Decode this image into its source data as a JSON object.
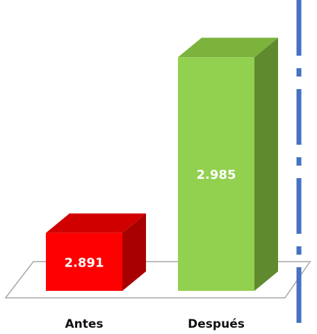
{
  "chart_data": {
    "type": "bar",
    "style": "3d",
    "categories": [
      "Antes",
      "Después"
    ],
    "values": [
      2.891,
      2.985
    ],
    "value_labels": [
      "2.891",
      "2.985"
    ],
    "colors": {
      "Antes": {
        "front": "#ff0000",
        "side": "#a80000",
        "top": "#d10000"
      },
      "Después": {
        "front": "#92d050",
        "side": "#5f8a2e",
        "top": "#7bb33d"
      }
    },
    "floor_color": "#ffffff",
    "floor_edge_color": "#a6a6a6",
    "dashed_line_color": "#4472c4",
    "grid": false,
    "legend": "none"
  }
}
